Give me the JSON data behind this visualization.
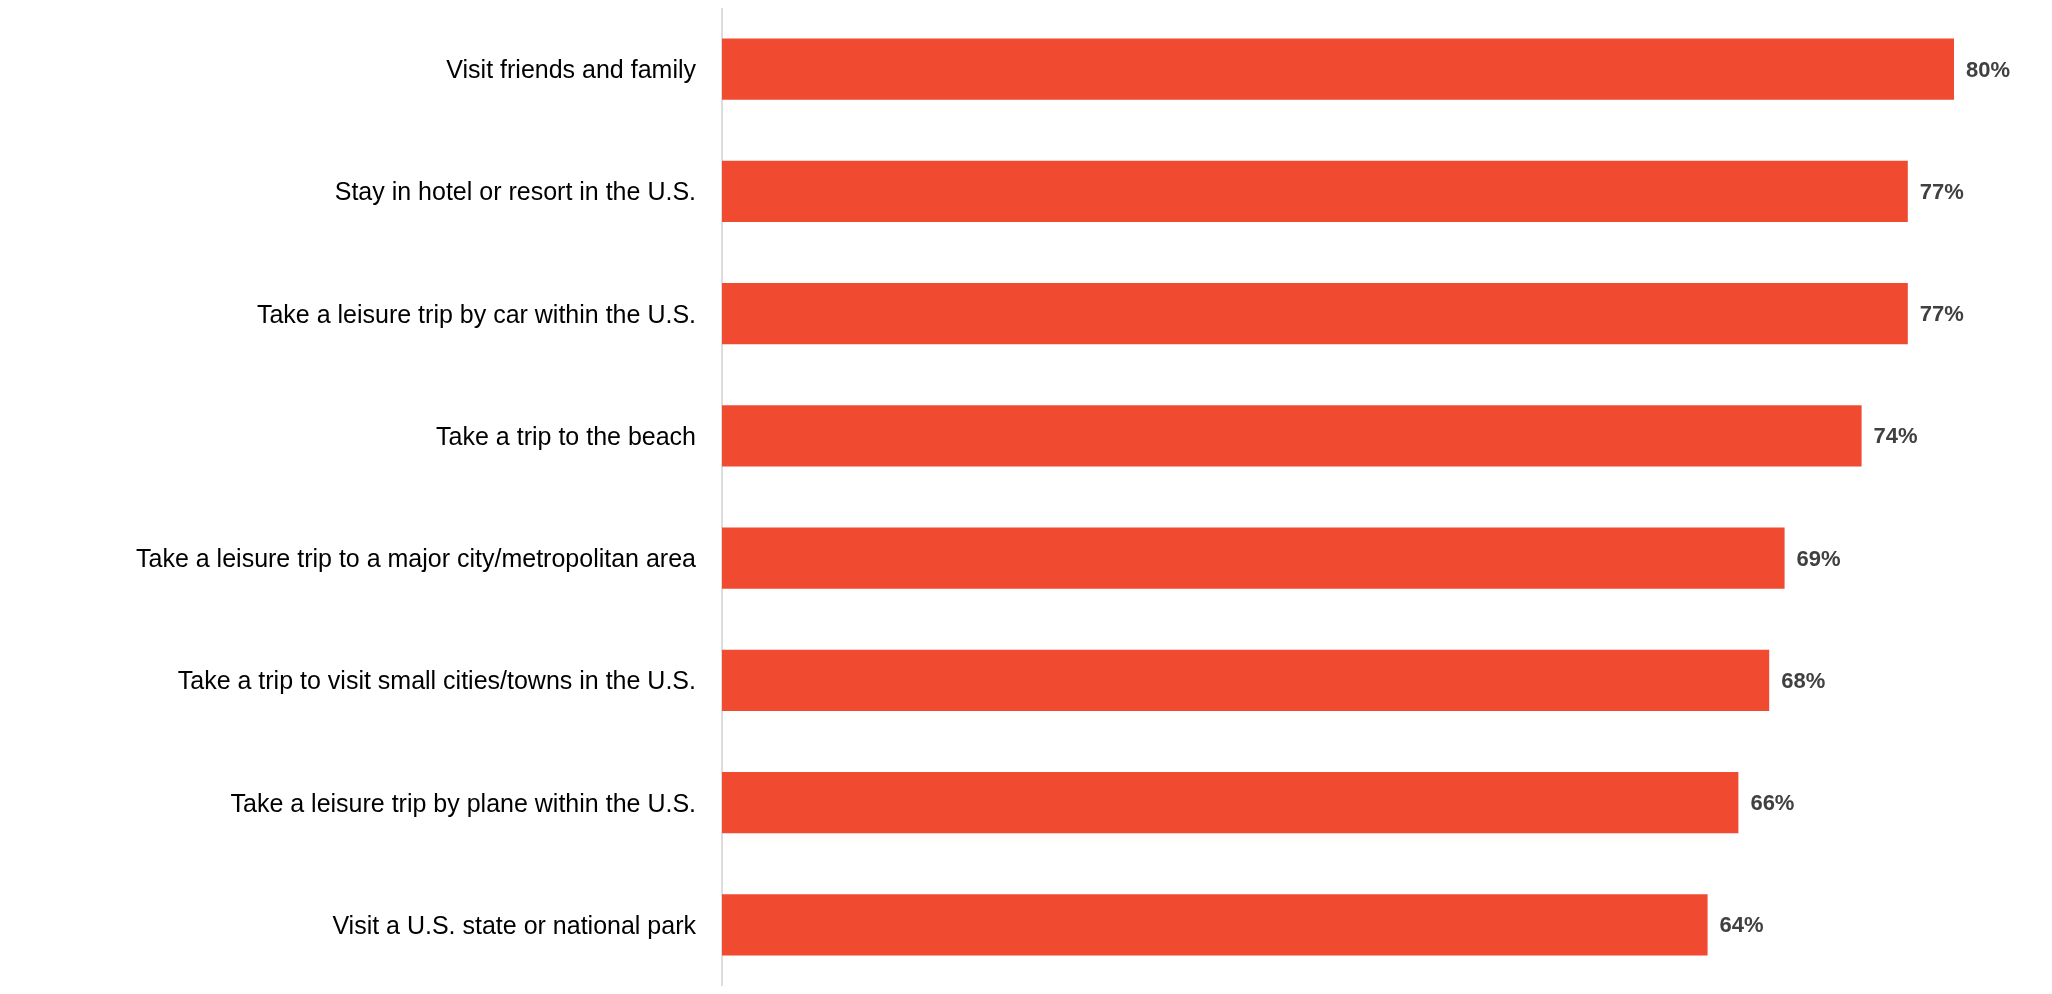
{
  "chart_data": {
    "type": "bar",
    "orientation": "horizontal",
    "categories": [
      "Visit friends and family",
      "Stay in hotel or resort in the U.S.",
      "Take a leisure trip by car within the U.S.",
      "Take a trip to the beach",
      "Take a leisure trip to a major city/metropolitan area",
      "Take a trip to visit small cities/towns in the U.S.",
      "Take a leisure trip by plane within the U.S.",
      "Visit a U.S. state or national park"
    ],
    "values": [
      80,
      77,
      77,
      74,
      69,
      68,
      66,
      64
    ],
    "value_labels": [
      "80%",
      "77%",
      "77%",
      "74%",
      "69%",
      "68%",
      "66%",
      "64%"
    ],
    "color": "#f04a30"
  }
}
